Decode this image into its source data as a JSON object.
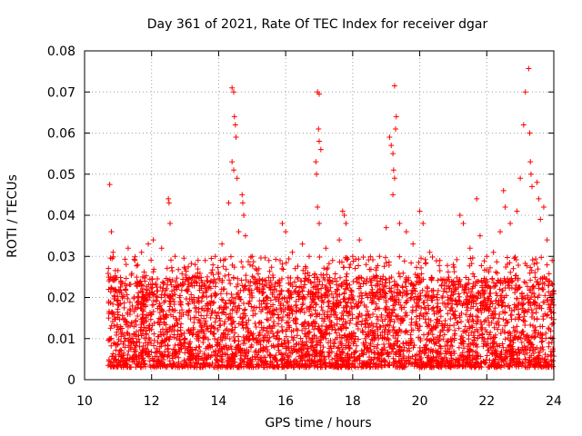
{
  "chart_data": {
    "type": "scatter",
    "title": "Day 361 of 2021, Rate Of TEC Index for receiver dgar",
    "xlabel": "GPS time / hours",
    "ylabel": "ROTI / TECUs",
    "xlim": [
      10,
      24
    ],
    "ylim": [
      0,
      0.08
    ],
    "xticks": [
      10,
      12,
      14,
      16,
      18,
      20,
      22,
      24
    ],
    "xtick_labels": [
      "10",
      "12",
      "14",
      "16",
      "18",
      "20",
      "22",
      "24"
    ],
    "yticks": [
      0,
      0.01,
      0.02,
      0.03,
      0.04,
      0.05,
      0.06,
      0.07,
      0.08
    ],
    "ytick_labels": [
      "0",
      "0.01",
      "0.02",
      "0.03",
      "0.04",
      "0.05",
      "0.06",
      "0.07",
      "0.08"
    ],
    "grid": true,
    "marker": "+",
    "color": "#ff0000",
    "series": [
      {
        "name": "ROTI",
        "points": [
          [
            10.75,
            0.0475
          ],
          [
            10.8,
            0.036
          ],
          [
            10.85,
            0.031
          ],
          [
            10.78,
            0.025
          ],
          [
            10.9,
            0.022
          ],
          [
            11.3,
            0.032
          ],
          [
            11.5,
            0.029
          ],
          [
            11.7,
            0.031
          ],
          [
            11.9,
            0.033
          ],
          [
            12.05,
            0.034
          ],
          [
            12.3,
            0.032
          ],
          [
            12.5,
            0.044
          ],
          [
            12.52,
            0.043
          ],
          [
            12.55,
            0.038
          ],
          [
            12.7,
            0.03
          ],
          [
            13.0,
            0.027
          ],
          [
            13.3,
            0.028
          ],
          [
            13.6,
            0.029
          ],
          [
            13.9,
            0.03
          ],
          [
            14.1,
            0.033
          ],
          [
            14.3,
            0.043
          ],
          [
            14.4,
            0.071
          ],
          [
            14.45,
            0.07
          ],
          [
            14.47,
            0.064
          ],
          [
            14.5,
            0.062
          ],
          [
            14.52,
            0.059
          ],
          [
            14.4,
            0.053
          ],
          [
            14.45,
            0.051
          ],
          [
            14.55,
            0.049
          ],
          [
            14.6,
            0.036
          ],
          [
            14.7,
            0.045
          ],
          [
            14.72,
            0.043
          ],
          [
            14.75,
            0.04
          ],
          [
            14.8,
            0.035
          ],
          [
            15.0,
            0.03
          ],
          [
            15.2,
            0.027
          ],
          [
            15.5,
            0.029
          ],
          [
            15.9,
            0.038
          ],
          [
            16.0,
            0.036
          ],
          [
            16.2,
            0.031
          ],
          [
            16.5,
            0.033
          ],
          [
            16.7,
            0.03
          ],
          [
            16.9,
            0.053
          ],
          [
            16.95,
            0.07
          ],
          [
            17.0,
            0.0695
          ],
          [
            16.98,
            0.061
          ],
          [
            17.0,
            0.058
          ],
          [
            17.05,
            0.056
          ],
          [
            16.92,
            0.05
          ],
          [
            16.95,
            0.042
          ],
          [
            17.0,
            0.038
          ],
          [
            17.2,
            0.032
          ],
          [
            17.4,
            0.029
          ],
          [
            17.6,
            0.034
          ],
          [
            17.7,
            0.041
          ],
          [
            17.75,
            0.04
          ],
          [
            17.8,
            0.038
          ],
          [
            18.0,
            0.03
          ],
          [
            18.2,
            0.034
          ],
          [
            18.4,
            0.028
          ],
          [
            18.8,
            0.03
          ],
          [
            19.0,
            0.037
          ],
          [
            19.1,
            0.059
          ],
          [
            19.15,
            0.057
          ],
          [
            19.2,
            0.055
          ],
          [
            19.25,
            0.0715
          ],
          [
            19.3,
            0.064
          ],
          [
            19.28,
            0.061
          ],
          [
            19.22,
            0.051
          ],
          [
            19.25,
            0.049
          ],
          [
            19.2,
            0.045
          ],
          [
            19.4,
            0.038
          ],
          [
            19.6,
            0.036
          ],
          [
            19.8,
            0.033
          ],
          [
            20.0,
            0.041
          ],
          [
            20.1,
            0.038
          ],
          [
            20.3,
            0.031
          ],
          [
            20.6,
            0.029
          ],
          [
            21.0,
            0.028
          ],
          [
            21.2,
            0.04
          ],
          [
            21.3,
            0.038
          ],
          [
            21.5,
            0.032
          ],
          [
            21.7,
            0.044
          ],
          [
            21.8,
            0.035
          ],
          [
            22.0,
            0.03
          ],
          [
            22.2,
            0.031
          ],
          [
            22.4,
            0.036
          ],
          [
            22.5,
            0.046
          ],
          [
            22.55,
            0.042
          ],
          [
            22.7,
            0.038
          ],
          [
            22.9,
            0.041
          ],
          [
            23.0,
            0.049
          ],
          [
            23.1,
            0.062
          ],
          [
            23.15,
            0.07
          ],
          [
            23.25,
            0.0757
          ],
          [
            23.28,
            0.06
          ],
          [
            23.3,
            0.053
          ],
          [
            23.32,
            0.05
          ],
          [
            23.35,
            0.047
          ],
          [
            23.5,
            0.048
          ],
          [
            23.55,
            0.044
          ],
          [
            23.6,
            0.039
          ],
          [
            23.7,
            0.042
          ],
          [
            23.8,
            0.034
          ],
          [
            23.95,
            0.029
          ]
        ]
      }
    ]
  }
}
